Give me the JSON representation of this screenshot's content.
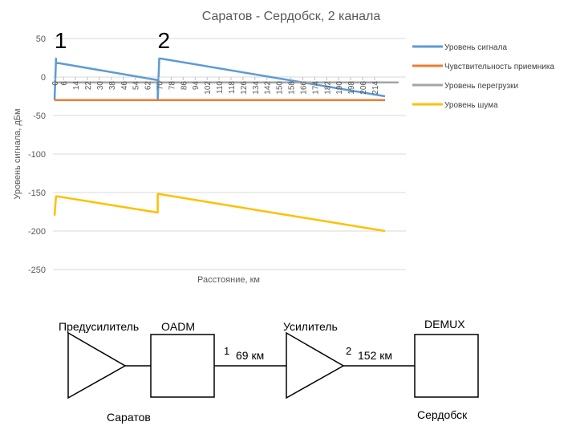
{
  "chart_data": {
    "type": "line",
    "title": "Саратов - Сердобск, 2 канала",
    "xlabel": "Расстояние, км",
    "ylabel": "Уровень сигнала, дБм",
    "ylim": [
      -250,
      50
    ],
    "yticks": [
      50,
      0,
      -50,
      -100,
      -150,
      -200,
      -250
    ],
    "xlim": [
      0,
      221
    ],
    "xtick_labels": [
      "0",
      "6",
      "14",
      "22",
      "30",
      "38",
      "46",
      "54",
      "62",
      "70",
      "78",
      "86",
      "94",
      "102",
      "110",
      "118",
      "126",
      "134",
      "142",
      "150",
      "158",
      "166",
      "174",
      "182",
      "190",
      "198",
      "206",
      "214"
    ],
    "xtick_values": [
      0,
      6,
      14,
      22,
      30,
      38,
      46,
      54,
      62,
      70,
      78,
      86,
      94,
      102,
      110,
      118,
      126,
      134,
      142,
      150,
      158,
      166,
      174,
      182,
      190,
      198,
      206,
      214
    ],
    "grid": true,
    "legend_position": "right",
    "markers": [
      {
        "text": "1",
        "x": 1
      },
      {
        "text": "2",
        "x": 70
      }
    ],
    "series": [
      {
        "name": "Уровень сигнала",
        "color": "#5B9BD5",
        "x": [
          0,
          1,
          1,
          3,
          69,
          69,
          70,
          71,
          221
        ],
        "y": [
          -30,
          24,
          18,
          18,
          -4,
          -30,
          24,
          24,
          -25
        ]
      },
      {
        "name": "Чувствительность приемника",
        "color": "#ED7D31",
        "x": [
          0,
          221
        ],
        "y": [
          -30,
          -30
        ]
      },
      {
        "name": "Уровень перегрузки",
        "color": "#A5A5A5",
        "x": [
          0,
          230
        ],
        "y": [
          -7,
          -7
        ]
      },
      {
        "name": "Уровень шума",
        "color": "#FFC000",
        "x": [
          0,
          1,
          2,
          69,
          69,
          70,
          221
        ],
        "y": [
          -180,
          -155,
          -155,
          -176,
          -152,
          -152,
          -200
        ]
      }
    ]
  },
  "diagram": {
    "preamp_label": "Предусилитель",
    "oadm_label": "OADM",
    "amp_label": "Усилитель",
    "demux_label": "DEMUX",
    "point1_label": "1",
    "span1_label": "69 км",
    "point2_label": "2",
    "span2_label": "152 км",
    "city_start": "Саратов",
    "city_end": "Сердобск"
  }
}
